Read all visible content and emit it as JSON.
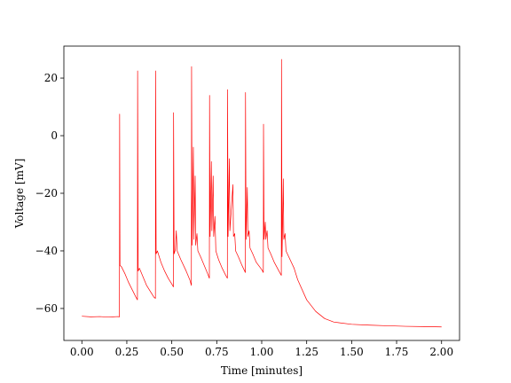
{
  "chart_data": {
    "type": "line",
    "xlabel": "Time [minutes]",
    "ylabel": "Voltage [mV]",
    "color": "#ff0000",
    "grid": false,
    "x": [
      0,
      0.05,
      0.1,
      0.15,
      0.2,
      0.209,
      0.21,
      0.212,
      0.22,
      0.24,
      0.26,
      0.28,
      0.3,
      0.309,
      0.31,
      0.313,
      0.32,
      0.34,
      0.36,
      0.38,
      0.4,
      0.409,
      0.41,
      0.413,
      0.42,
      0.44,
      0.46,
      0.48,
      0.5,
      0.509,
      0.51,
      0.513,
      0.52,
      0.525,
      0.53,
      0.55,
      0.58,
      0.6,
      0.609,
      0.61,
      0.613,
      0.62,
      0.623,
      0.63,
      0.633,
      0.64,
      0.645,
      0.66,
      0.68,
      0.7,
      0.709,
      0.71,
      0.713,
      0.72,
      0.723,
      0.73,
      0.733,
      0.74,
      0.745,
      0.76,
      0.78,
      0.8,
      0.809,
      0.81,
      0.813,
      0.82,
      0.823,
      0.84,
      0.843,
      0.85,
      0.855,
      0.87,
      0.89,
      0.909,
      0.91,
      0.913,
      0.92,
      0.923,
      0.93,
      0.935,
      0.95,
      0.97,
      1.0,
      1.009,
      1.01,
      1.013,
      1.02,
      1.023,
      1.03,
      1.035,
      1.05,
      1.07,
      1.1,
      1.109,
      1.11,
      1.113,
      1.12,
      1.123,
      1.13,
      1.135,
      1.15,
      1.18,
      1.2,
      1.25,
      1.3,
      1.35,
      1.4,
      1.5,
      1.6,
      1.7,
      1.8,
      1.9,
      2.0
    ],
    "values": [
      -62.7,
      -62.9,
      -62.8,
      -63,
      -62.8,
      -62.9,
      7.5,
      -45,
      -45.5,
      -48,
      -51,
      -53.5,
      -56,
      -57,
      22.5,
      -47,
      -46,
      -49,
      -52,
      -54,
      -56,
      -56.5,
      22.5,
      -41,
      -40,
      -44,
      -47,
      -49.5,
      -51.5,
      -52.5,
      8,
      -41,
      -39.5,
      -33,
      -40,
      -43,
      -47,
      -50,
      -52,
      24,
      -38,
      -4,
      -36,
      -14,
      -38,
      -34,
      -40,
      -42,
      -45,
      -48,
      -49.5,
      14,
      -35,
      -9,
      -33,
      -14,
      -35,
      -28,
      -40,
      -43,
      -46,
      -48.5,
      -49.5,
      16,
      -35,
      -8,
      -33,
      -17,
      -35,
      -34,
      -40,
      -42,
      -45,
      -47.5,
      15,
      -36,
      -18,
      -35,
      -33,
      -39,
      -41,
      -44,
      -46.5,
      -47.5,
      4,
      -36,
      -30,
      -36,
      -33,
      -39,
      -41,
      -44,
      -47.5,
      -48.5,
      26.5,
      -42,
      -15,
      -36,
      -34,
      -40,
      -42,
      -46,
      -50,
      -57,
      -61,
      -63.5,
      -64.7,
      -65.5,
      -65.8,
      -66,
      -66.2,
      -66.3,
      -66.4
    ],
    "xlim": [
      -0.1,
      2.1
    ],
    "ylim": [
      -71.1,
      31.1
    ],
    "xticks": [
      {
        "value": 0,
        "label": "0.00"
      },
      {
        "value": 0.25,
        "label": "0.25"
      },
      {
        "value": 0.5,
        "label": "0.50"
      },
      {
        "value": 0.75,
        "label": "0.75"
      },
      {
        "value": 1,
        "label": "1.00"
      },
      {
        "value": 1.25,
        "label": "1.25"
      },
      {
        "value": 1.5,
        "label": "1.50"
      },
      {
        "value": 1.75,
        "label": "1.75"
      },
      {
        "value": 2,
        "label": "2.00"
      }
    ],
    "yticks": [
      {
        "value": -60,
        "label": "−60"
      },
      {
        "value": -40,
        "label": "−40"
      },
      {
        "value": -20,
        "label": "−20"
      },
      0,
      20
    ]
  }
}
